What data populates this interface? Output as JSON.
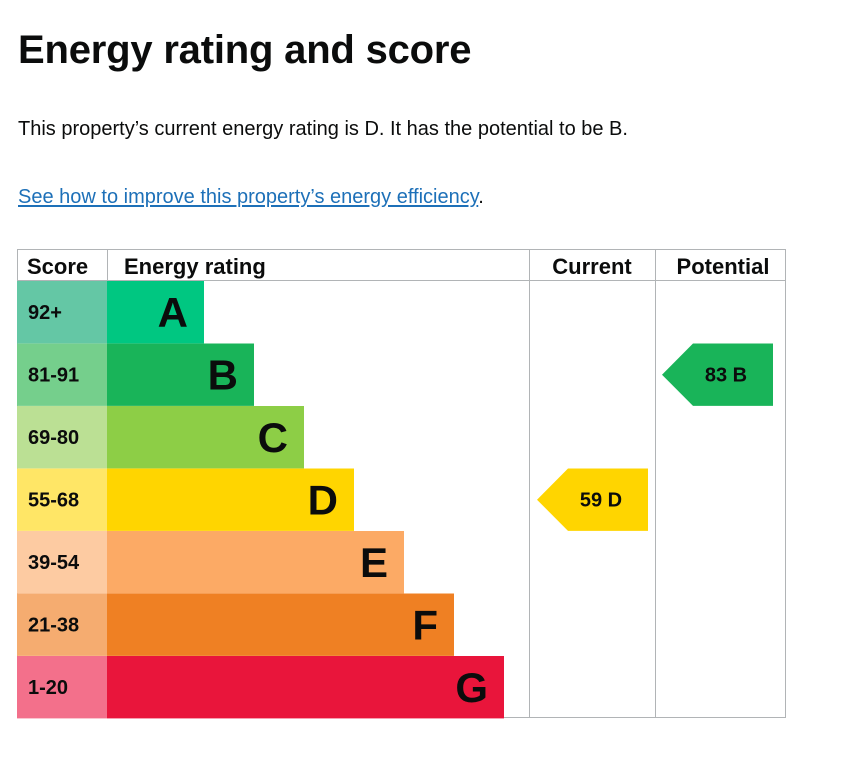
{
  "page": {
    "title": "Energy rating and score",
    "summary": "This property’s current energy rating is D. It has the potential to be B.",
    "improve_link": "See how to improve this property’s energy efficiency",
    "improve_link_suffix": "."
  },
  "chart_data": {
    "type": "table",
    "headers": {
      "score": "Score",
      "rating": "Energy rating",
      "current": "Current",
      "potential": "Potential"
    },
    "bands": [
      {
        "letter": "A",
        "range": "92+",
        "band_color": "#00c781",
        "score_color": "#64c7a5"
      },
      {
        "letter": "B",
        "range": "81-91",
        "band_color": "#19b459",
        "score_color": "#75cf8c"
      },
      {
        "letter": "C",
        "range": "69-80",
        "band_color": "#8dce46",
        "score_color": "#bbe094"
      },
      {
        "letter": "D",
        "range": "55-68",
        "band_color": "#ffd500",
        "score_color": "#ffe666"
      },
      {
        "letter": "E",
        "range": "39-54",
        "band_color": "#fcaa65",
        "score_color": "#fdcba2"
      },
      {
        "letter": "F",
        "range": "21-38",
        "band_color": "#ef8023",
        "score_color": "#f5ac70"
      },
      {
        "letter": "G",
        "range": "1-20",
        "band_color": "#e9153b",
        "score_color": "#f3708b"
      }
    ],
    "current": {
      "score": 59,
      "letter": "D",
      "label": "59  D",
      "color": "#ffd500"
    },
    "potential": {
      "score": 83,
      "letter": "B",
      "label": "83  B",
      "color": "#19b459"
    }
  }
}
